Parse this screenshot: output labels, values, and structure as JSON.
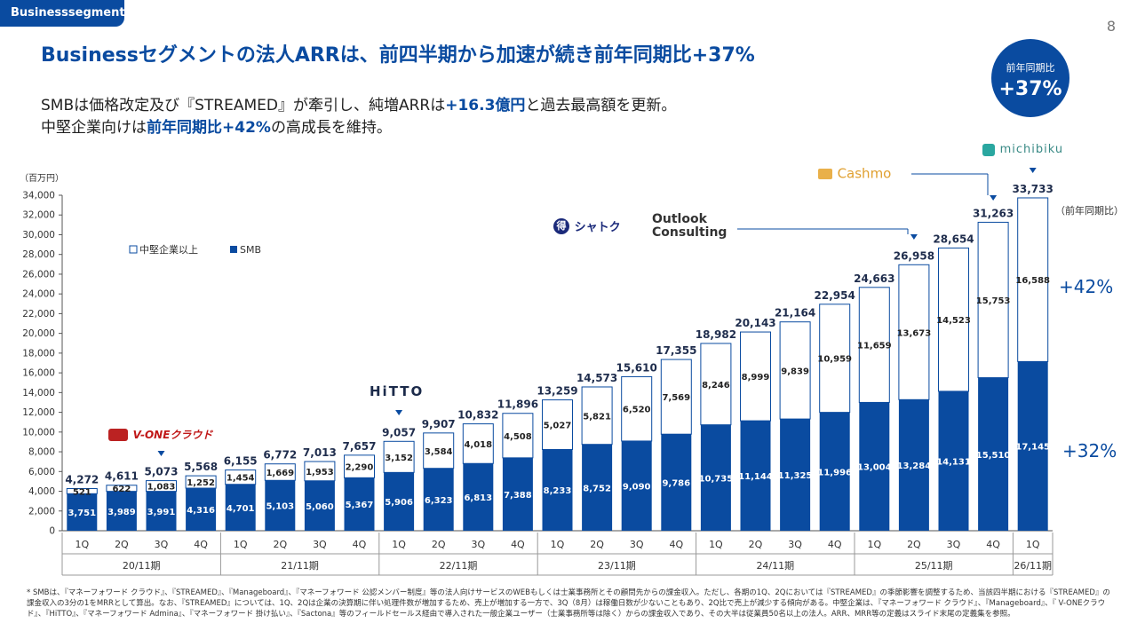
{
  "header": {
    "tag": "Businesssegment",
    "page_number": "8",
    "title": "Businessセグメントの法人ARRは、前四半期から加速が続き前年同期比+37%",
    "sub1_a": "SMBは価格改定及び『STREAMED』が牽引し、純増ARRは",
    "sub1_hl": "+16.3億円",
    "sub1_b": "と過去最高額を更新。",
    "sub2_a": "中堅企業向けは",
    "sub2_hl": "前年同期比+42%",
    "sub2_b": "の高成長を維持。",
    "badge_label": "前年同期比",
    "badge_value": "+37%"
  },
  "logos": {
    "vone": "V-ONEクラウド",
    "hitto": "HiTTO",
    "shatoku": "シャトク",
    "outlook": "Outlook Consulting",
    "cashmo": "Cashmo",
    "michibiku": "michibiku"
  },
  "chart_data": {
    "type": "bar",
    "stacked": true,
    "unit_label": "（百万円）",
    "yoy_label": "（前年同期比）",
    "ylim": [
      0,
      34000
    ],
    "yticks": [
      0,
      2000,
      4000,
      6000,
      8000,
      10000,
      12000,
      14000,
      16000,
      18000,
      20000,
      22000,
      24000,
      26000,
      28000,
      30000,
      32000,
      34000
    ],
    "categories": [
      "1Q",
      "2Q",
      "3Q",
      "4Q",
      "1Q",
      "2Q",
      "3Q",
      "4Q",
      "1Q",
      "2Q",
      "3Q",
      "4Q",
      "1Q",
      "2Q",
      "3Q",
      "4Q",
      "1Q",
      "2Q",
      "3Q",
      "4Q",
      "1Q",
      "2Q",
      "3Q",
      "4Q",
      "1Q"
    ],
    "periods": [
      {
        "label": "20/11期",
        "count": 4
      },
      {
        "label": "21/11期",
        "count": 4
      },
      {
        "label": "22/11期",
        "count": 4
      },
      {
        "label": "23/11期",
        "count": 4
      },
      {
        "label": "24/11期",
        "count": 4
      },
      {
        "label": "25/11期",
        "count": 4
      },
      {
        "label": "26/11期",
        "count": 1
      }
    ],
    "series": [
      {
        "name": "SMB",
        "color": "#0a4ba0",
        "values": [
          3751,
          3989,
          3991,
          4316,
          4701,
          5103,
          5060,
          5367,
          5906,
          6323,
          6813,
          7388,
          8233,
          8752,
          9090,
          9786,
          10735,
          11144,
          11325,
          11996,
          13004,
          13284,
          14131,
          15510,
          17145
        ]
      },
      {
        "name": "中堅企業以上",
        "color": "#ffffff",
        "values": [
          521,
          622,
          1083,
          1252,
          1454,
          1669,
          1953,
          2290,
          3152,
          3584,
          4018,
          4508,
          5027,
          5821,
          6520,
          7569,
          8246,
          8999,
          9839,
          10959,
          11659,
          13673,
          14523,
          15753,
          16588
        ]
      }
    ],
    "totals": [
      4272,
      4611,
      5073,
      5568,
      6155,
      6772,
      7013,
      7657,
      9057,
      9907,
      10832,
      11896,
      13259,
      14573,
      15610,
      17355,
      18982,
      20143,
      21164,
      22954,
      24663,
      26958,
      28654,
      31263,
      33733
    ],
    "yoy": {
      "mid": "+42%",
      "smb": "+32%"
    }
  },
  "footnote": "* SMBは、『マネーフォワード クラウド』、『STREAMED』、『Manageboard』、『マネーフォワード 公認メンバー制度』等の法人向けサービスのWEBもしくは士業事務所とその顧問先からの課金収入。ただし、各期の1Q、2Qにおいては『STREAMED』の季節影響を調整するため、当該四半期における『STREAMED』の課金収入の3分の1をMRRとして算出。なお、『STREAMED』については、1Q、2Qは企業の決算期に伴い処理件数が増加するため、売上が増加する一方で、3Q（8月）は稼働日数が少ないこともあり、2Q比で売上が減少する傾向がある。中堅企業は、『マネーフォワード クラウド』、『Manageboard』、『 V-ONEクラウド』、『HiTTO』、『マネーフォワード Admina』、『マネーフォワード 掛け払い』、『Sactona』等のフィールドセールス経由で導入された一般企業ユーザー（士業事務所等は除く）からの課金収入であり、その大半は従業員50名以上の法人。ARR、MRR等の定義はスライド末尾の定義集を参照。"
}
